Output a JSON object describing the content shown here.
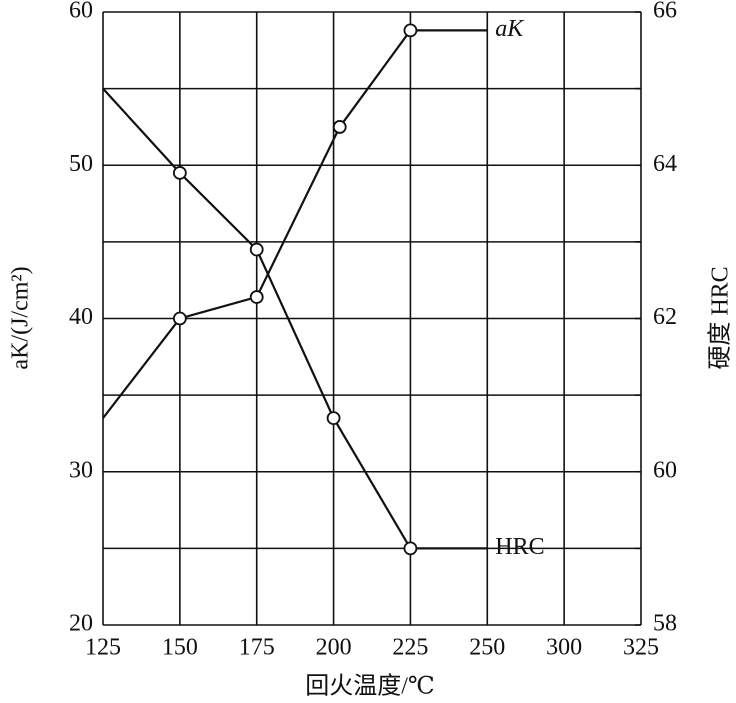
{
  "chart_data": {
    "type": "line",
    "x_label": "回火温度/℃",
    "y_label": "aK/(J/cm²)",
    "y2_label": "硬度  HRC",
    "xlim": [
      125,
      300
    ],
    "xticks": [
      125,
      150,
      175,
      200,
      225,
      250,
      {
        "value": 275,
        "label": "300"
      },
      {
        "value": 300,
        "label": "325"
      }
    ],
    "ylim": [
      20,
      60
    ],
    "yticks": [
      20,
      30,
      40,
      50,
      60
    ],
    "minor_yticks": [
      25,
      35,
      45,
      55
    ],
    "y2lim": [
      58,
      66
    ],
    "y2ticks": [
      58,
      60,
      62,
      64,
      66
    ],
    "minor_y2ticks": [
      59,
      61,
      63,
      65
    ],
    "grid": true,
    "series": [
      {
        "name": "aK",
        "color": "#111111",
        "x": [
          125,
          150,
          175,
          202,
          225,
          250
        ],
        "values": [
          33.5,
          40,
          41.4,
          52.5,
          58.8,
          58.8
        ]
      },
      {
        "name": "HRC",
        "color": "#111111",
        "axis": "y2",
        "x": [
          125,
          150,
          175,
          200,
          225,
          250
        ],
        "values": [
          65,
          63.9,
          62.9,
          60.7,
          59,
          59
        ]
      }
    ]
  }
}
